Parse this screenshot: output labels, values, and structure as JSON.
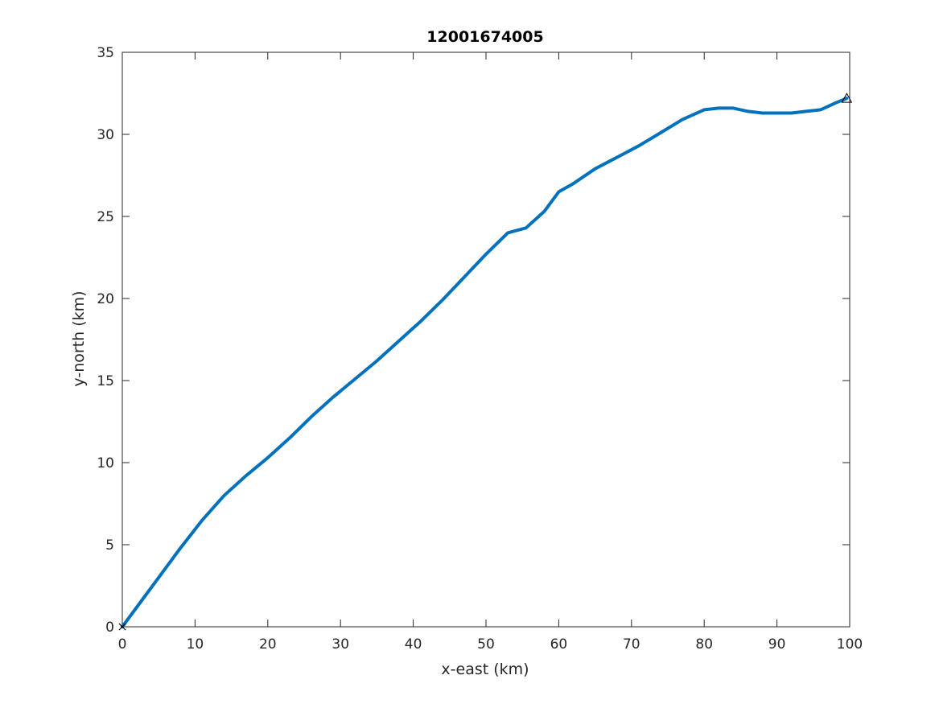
{
  "chart_data": {
    "type": "line",
    "title": "12001674005",
    "xlabel": "x-east (km)",
    "ylabel": "y-north (km)",
    "xlim": [
      0,
      100
    ],
    "ylim": [
      0,
      35
    ],
    "xticks": [
      0,
      10,
      20,
      30,
      40,
      50,
      60,
      70,
      80,
      90,
      100
    ],
    "yticks": [
      0,
      5,
      10,
      15,
      20,
      25,
      30,
      35
    ],
    "grid": false,
    "line_color": "#0072BD",
    "series": [
      {
        "x": [
          0,
          2,
          5,
          8,
          11,
          14,
          17,
          20,
          23,
          26,
          29,
          32,
          35,
          38,
          41,
          44,
          47,
          50,
          53,
          55.5,
          58,
          60,
          62,
          65,
          68,
          71,
          74,
          77,
          80,
          82,
          84,
          86,
          88,
          90,
          92,
          94,
          96,
          98,
          99.6
        ],
        "y": [
          0,
          1.2,
          3.0,
          4.8,
          6.5,
          8.0,
          9.2,
          10.3,
          11.5,
          12.8,
          14.0,
          15.1,
          16.2,
          17.4,
          18.6,
          19.9,
          21.3,
          22.7,
          24.0,
          24.3,
          25.3,
          26.5,
          27.0,
          27.9,
          28.6,
          29.3,
          30.1,
          30.9,
          31.5,
          31.6,
          31.6,
          31.4,
          31.3,
          31.3,
          31.3,
          31.4,
          31.5,
          31.9,
          32.2
        ]
      }
    ],
    "markers": [
      {
        "shape": "x",
        "x": 0,
        "y": 0
      },
      {
        "shape": "triangle",
        "x": 99.6,
        "y": 32.2
      }
    ]
  }
}
